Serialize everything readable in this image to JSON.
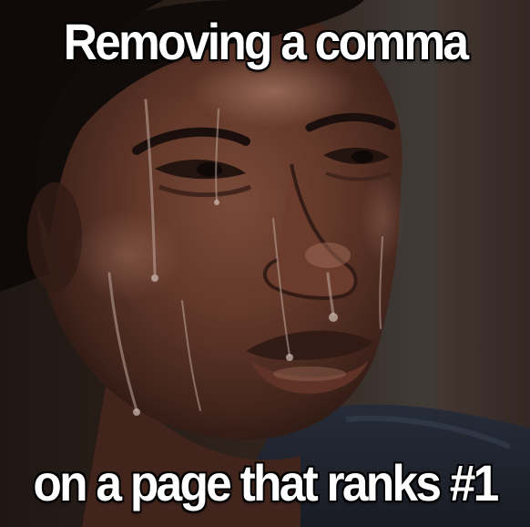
{
  "meme": {
    "top_text": "Removing a comma",
    "bottom_text": "on a page that ranks #1"
  }
}
